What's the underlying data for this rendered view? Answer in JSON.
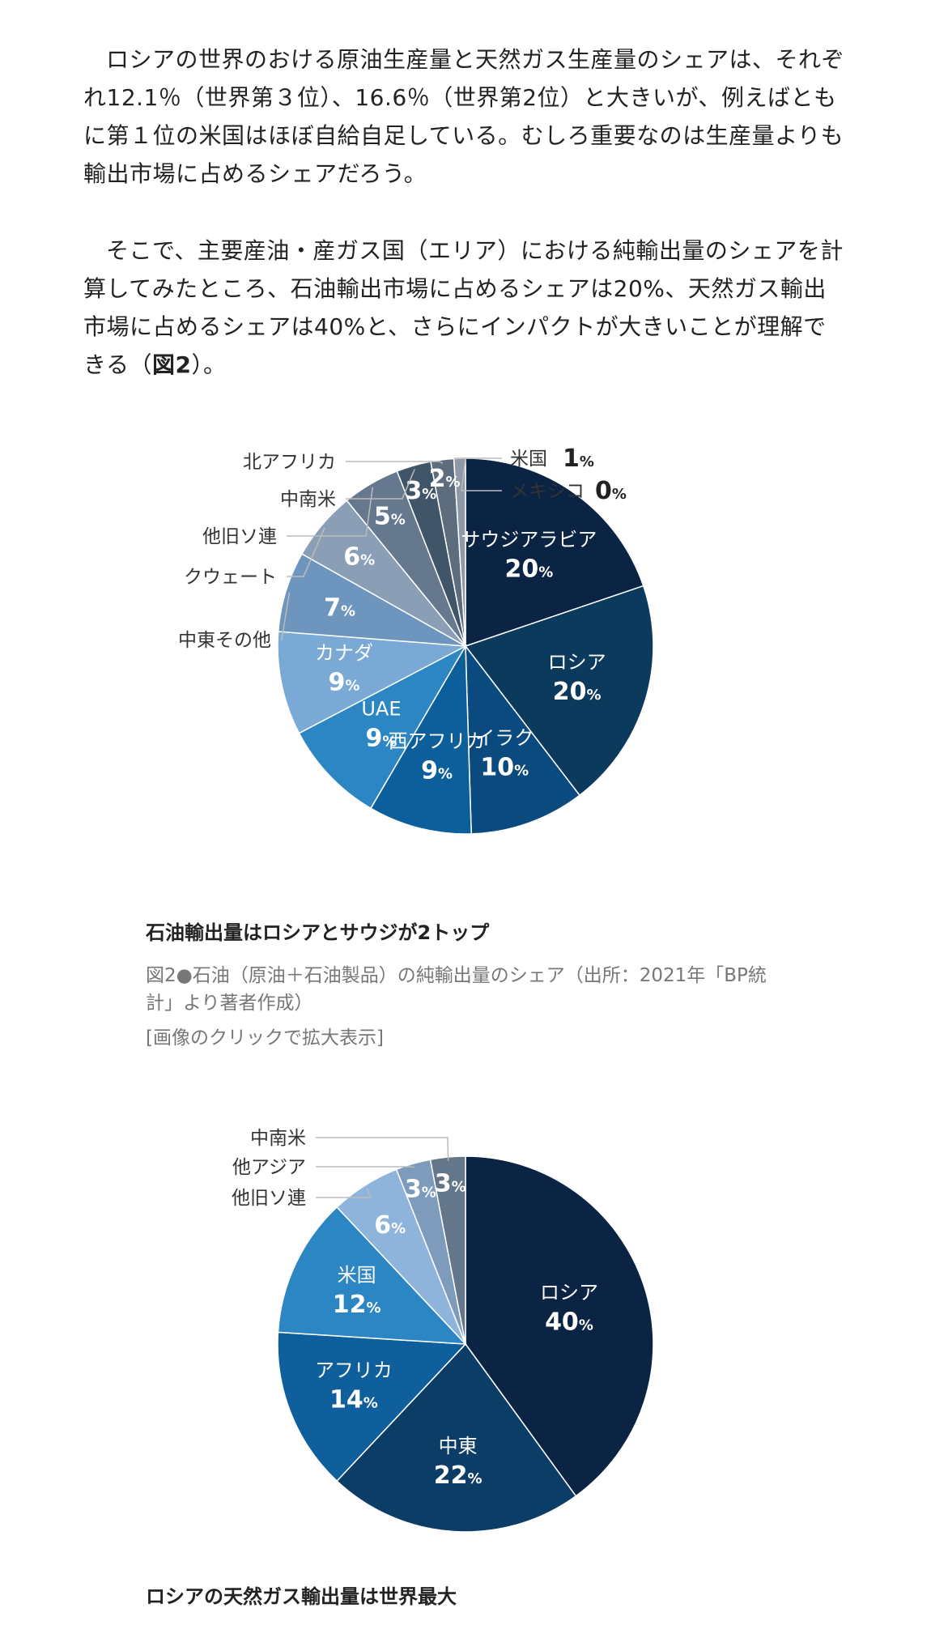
{
  "article": {
    "paragraph1": "ロシアの世界のおける原油生産量と天然ガス生産量のシェアは、それぞれ12.1％（世界第３位）、16.6％（世界第2位）と大きいが、例えばともに第１位の米国はほぼ自給自足している。むしろ重要なのは生産量よりも輸出市場に占めるシェアだろう。",
    "paragraph2_text": "そこで、主要産油・産ガス国（エリア）における純輸出量のシェアを計算してみたところ、石油輸出市場に占めるシェアは20%、天然ガス輸出市場に占めるシェアは40%と、さらにインパクトが大きいことが理解できる",
    "paragraph2_ref_open": "（",
    "paragraph2_ref": "図2",
    "paragraph2_ref_close": "）。"
  },
  "figure1": {
    "caption_title": "石油輸出量はロシアとサウジが2トップ",
    "caption_text": "図2●石油（原油＋石油製品）の純輸出量のシェア（出所：2021年「BP統計」より著者作成）",
    "caption_link": "[画像のクリックで拡大表示]"
  },
  "figure2": {
    "caption_title": "ロシアの天然ガス輸出量は世界最大"
  },
  "chart_data": [
    {
      "type": "pie",
      "title": "",
      "unit": "%",
      "slices": [
        {
          "name": "サウジアラビア",
          "value": 20,
          "color": "#0b2444"
        },
        {
          "name": "ロシア",
          "value": 20,
          "color": "#0c3a5c"
        },
        {
          "name": "イラク",
          "value": 10,
          "color": "#0a4a7e"
        },
        {
          "name": "西アフリカ",
          "value": 9,
          "color": "#0d5f9c"
        },
        {
          "name": "UAE",
          "value": 9,
          "color": "#2c86c4"
        },
        {
          "name": "カナダ",
          "value": 9,
          "color": "#7aa9d6"
        },
        {
          "name": "中東その他",
          "value": 7,
          "color": "#6e95bd"
        },
        {
          "name": "クウェート",
          "value": 6,
          "color": "#8a9eb6"
        },
        {
          "name": "他旧ソ連",
          "value": 5,
          "color": "#66788e"
        },
        {
          "name": "中南米",
          "value": 3,
          "color": "#415569"
        },
        {
          "name": "北アフリカ",
          "value": 2,
          "color": "#5d6d7e"
        },
        {
          "name": "米国",
          "value": 1,
          "color": "#8f9aa6"
        },
        {
          "name": "メキシコ",
          "value": 0,
          "color": "#b0b8c0"
        }
      ]
    },
    {
      "type": "pie",
      "title": "",
      "unit": "%",
      "slices": [
        {
          "name": "ロシア",
          "value": 40,
          "color": "#0b2444"
        },
        {
          "name": "中東",
          "value": 22,
          "color": "#0c3d66"
        },
        {
          "name": "アフリカ",
          "value": 14,
          "color": "#0f5f9c"
        },
        {
          "name": "米国",
          "value": 12,
          "color": "#2c86c4"
        },
        {
          "name": "他旧ソ連",
          "value": 6,
          "color": "#8fb4dc"
        },
        {
          "name": "他アジア",
          "value": 3,
          "color": "#7e9bbb"
        },
        {
          "name": "中南米",
          "value": 3,
          "color": "#64768a"
        }
      ]
    }
  ]
}
